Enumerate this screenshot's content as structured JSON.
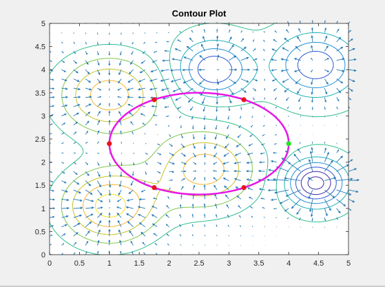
{
  "chart_data": {
    "type": "contour",
    "title": "Contour Plot",
    "xlabel": "",
    "ylabel": "",
    "xlim": [
      0,
      5
    ],
    "ylim": [
      0,
      5
    ],
    "xticks": [
      "0",
      "0.5",
      "1",
      "1.5",
      "2",
      "2.5",
      "3",
      "3.5",
      "4",
      "4.5",
      "5"
    ],
    "yticks": [
      "0",
      "0.5",
      "1",
      "1.5",
      "2",
      "2.5",
      "3",
      "3.5",
      "4",
      "4.5",
      "5"
    ],
    "grid": false,
    "colormap": [
      "#3e26a8",
      "#2a55d6",
      "#1f8fd6",
      "#1cb0b8",
      "#2fbd8c",
      "#7cc74a",
      "#c8c227",
      "#f3b42a",
      "#f9e11d"
    ],
    "quiver_color": "#1f77b4",
    "contour_levels": 11,
    "field_features": [
      {
        "type": "peak",
        "x": 1.0,
        "y": 3.45,
        "amplitude": 1.0,
        "sigma": 0.6
      },
      {
        "type": "peak",
        "x": 1.0,
        "y": 1.05,
        "amplitude": 1.2,
        "sigma": 0.55
      },
      {
        "type": "peak",
        "x": 2.6,
        "y": 1.85,
        "amplitude": 1.0,
        "sigma": 0.6
      },
      {
        "type": "well",
        "x": 2.75,
        "y": 4.0,
        "amplitude": 0.95,
        "sigma": 0.4
      },
      {
        "type": "well",
        "x": 4.45,
        "y": 4.1,
        "amplitude": 0.9,
        "sigma": 0.45
      },
      {
        "type": "well",
        "x": 4.45,
        "y": 1.55,
        "amplitude": 1.3,
        "sigma": 0.32
      }
    ],
    "ellipse": {
      "center": [
        2.5,
        2.4
      ],
      "semi_axes": [
        1.5,
        1.1
      ],
      "color": "#e617e6"
    },
    "markers": [
      {
        "x": 1.75,
        "y": 3.35,
        "color": "#e8161c"
      },
      {
        "x": 3.25,
        "y": 3.35,
        "color": "#e8161c"
      },
      {
        "x": 1.0,
        "y": 2.4,
        "color": "#e8161c"
      },
      {
        "x": 4.0,
        "y": 2.4,
        "color": "#21e821"
      },
      {
        "x": 1.75,
        "y": 1.45,
        "color": "#e8161c"
      },
      {
        "x": 3.25,
        "y": 1.45,
        "color": "#e8161c"
      }
    ]
  }
}
